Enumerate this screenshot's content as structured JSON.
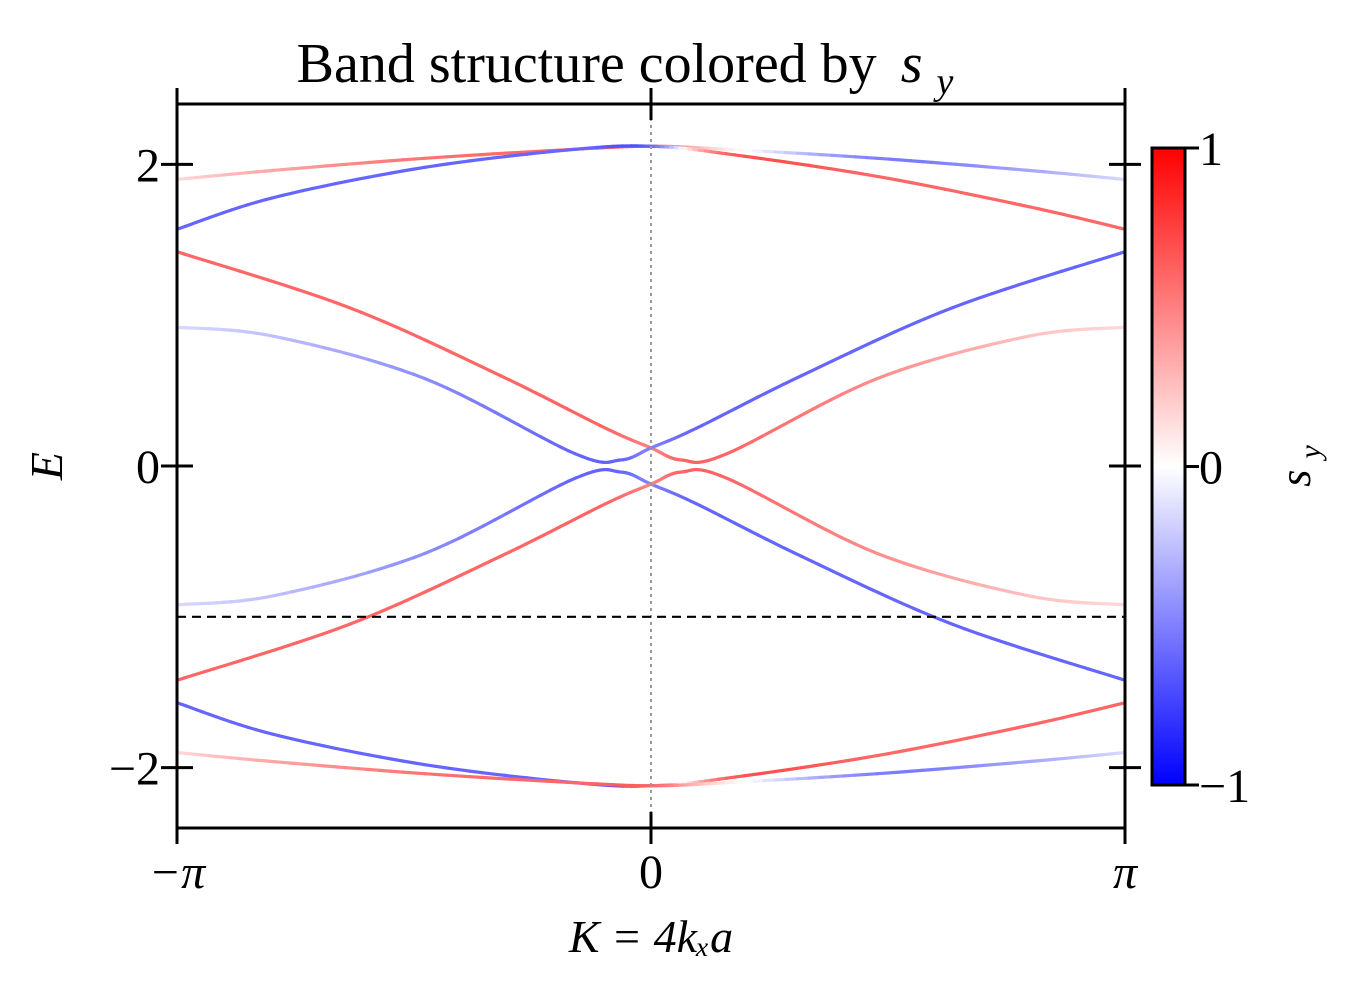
{
  "chart_data": {
    "type": "line",
    "title": "Band structure colored by",
    "title_symbol": "s",
    "title_symbol_sub": "y",
    "xlabel": "K = 4kₓa",
    "ylabel": "E",
    "x_ticks": [
      "−π",
      "0",
      "π"
    ],
    "y_ticks": [
      "2",
      "0",
      "−2"
    ],
    "xlim": [
      -3.14159,
      3.14159
    ],
    "ylim": [
      -2.4,
      2.4
    ],
    "y_tick_values": [
      2,
      0,
      -2
    ],
    "x_tick_values": [
      -3.14159,
      0,
      3.14159
    ],
    "hline": {
      "y": -1.0,
      "style": "dashed"
    },
    "vline": {
      "x": 0,
      "style": "dotted"
    },
    "colorbar": {
      "label": "s",
      "label_sub": "y",
      "min": -1,
      "max": 1,
      "ticks": [
        "1",
        "0",
        "−1"
      ],
      "tick_values": [
        1,
        0,
        -1
      ],
      "colormap": "bwr",
      "colors": {
        "low": "#0000ff",
        "mid": "#ffffff",
        "high": "#ff0000"
      }
    },
    "series": [
      {
        "values": [
          [
            -3.14,
            1.9,
            0.15
          ],
          [
            -2.5,
            1.96,
            0.35
          ],
          [
            -1.5,
            2.04,
            0.55
          ],
          [
            -0.5,
            2.1,
            0.6
          ],
          [
            0,
            2.12,
            0.6
          ],
          [
            0.5,
            2.1,
            0.1
          ],
          [
            1.5,
            2.04,
            -0.5
          ],
          [
            2.5,
            1.96,
            -0.35
          ],
          [
            3.14,
            1.9,
            -0.15
          ]
        ]
      },
      {
        "values": [
          [
            -3.14,
            1.57,
            -0.6
          ],
          [
            -2.5,
            1.78,
            -0.6
          ],
          [
            -1.5,
            1.98,
            -0.6
          ],
          [
            -0.5,
            2.1,
            -0.6
          ],
          [
            0,
            2.12,
            -0.6
          ],
          [
            0.5,
            2.07,
            0.6
          ],
          [
            1.5,
            1.92,
            0.6
          ],
          [
            2.5,
            1.72,
            0.6
          ],
          [
            3.14,
            1.57,
            0.6
          ]
        ]
      },
      {
        "values": [
          [
            -3.14,
            1.42,
            0.6
          ],
          [
            -2.0,
            1.05,
            0.6
          ],
          [
            -1.0,
            0.6,
            0.6
          ],
          [
            -0.3,
            0.25,
            0.6
          ],
          [
            0,
            0.12,
            0.5
          ],
          [
            0.2,
            0.04,
            0.6
          ],
          [
            0.5,
            0.08,
            0.6
          ],
          [
            1.5,
            0.58,
            0.45
          ],
          [
            2.5,
            0.86,
            0.25
          ],
          [
            3.14,
            0.92,
            0.15
          ]
        ]
      },
      {
        "values": [
          [
            -3.14,
            0.92,
            -0.15
          ],
          [
            -2.5,
            0.86,
            -0.25
          ],
          [
            -1.5,
            0.58,
            -0.45
          ],
          [
            -0.5,
            0.08,
            -0.6
          ],
          [
            -0.2,
            0.04,
            -0.6
          ],
          [
            0,
            0.12,
            -0.5
          ],
          [
            0.3,
            0.25,
            -0.6
          ],
          [
            1.0,
            0.6,
            -0.6
          ],
          [
            2.0,
            1.05,
            -0.6
          ],
          [
            3.14,
            1.42,
            -0.6
          ]
        ]
      },
      {
        "values": [
          [
            -3.14,
            -0.92,
            -0.15
          ],
          [
            -2.5,
            -0.86,
            -0.25
          ],
          [
            -1.5,
            -0.58,
            -0.45
          ],
          [
            -0.5,
            -0.08,
            -0.6
          ],
          [
            -0.2,
            -0.04,
            -0.6
          ],
          [
            0,
            -0.12,
            -0.5
          ],
          [
            0.3,
            -0.25,
            -0.6
          ],
          [
            1.0,
            -0.6,
            -0.6
          ],
          [
            2.0,
            -1.05,
            -0.6
          ],
          [
            3.14,
            -1.42,
            -0.6
          ]
        ]
      },
      {
        "values": [
          [
            -3.14,
            -1.42,
            0.6
          ],
          [
            -2.0,
            -1.05,
            0.6
          ],
          [
            -1.0,
            -0.6,
            0.6
          ],
          [
            -0.3,
            -0.25,
            0.6
          ],
          [
            0,
            -0.12,
            0.5
          ],
          [
            0.2,
            -0.04,
            0.6
          ],
          [
            0.5,
            -0.08,
            0.6
          ],
          [
            1.5,
            -0.58,
            0.45
          ],
          [
            2.5,
            -0.86,
            0.25
          ],
          [
            3.14,
            -0.92,
            0.15
          ]
        ]
      },
      {
        "values": [
          [
            -3.14,
            -1.57,
            -0.6
          ],
          [
            -2.5,
            -1.78,
            -0.6
          ],
          [
            -1.5,
            -1.98,
            -0.6
          ],
          [
            -0.5,
            -2.1,
            -0.6
          ],
          [
            0,
            -2.12,
            -0.6
          ],
          [
            0.5,
            -2.07,
            0.6
          ],
          [
            1.5,
            -1.92,
            0.6
          ],
          [
            2.5,
            -1.72,
            0.6
          ],
          [
            3.14,
            -1.57,
            0.6
          ]
        ]
      },
      {
        "values": [
          [
            -3.14,
            -1.9,
            0.15
          ],
          [
            -2.5,
            -1.96,
            0.35
          ],
          [
            -1.5,
            -2.04,
            0.55
          ],
          [
            -0.5,
            -2.1,
            0.6
          ],
          [
            0,
            -2.12,
            0.6
          ],
          [
            0.5,
            -2.1,
            0.1
          ],
          [
            1.5,
            -2.04,
            -0.5
          ],
          [
            2.5,
            -1.96,
            -0.35
          ],
          [
            3.14,
            -1.9,
            -0.15
          ]
        ]
      }
    ]
  }
}
